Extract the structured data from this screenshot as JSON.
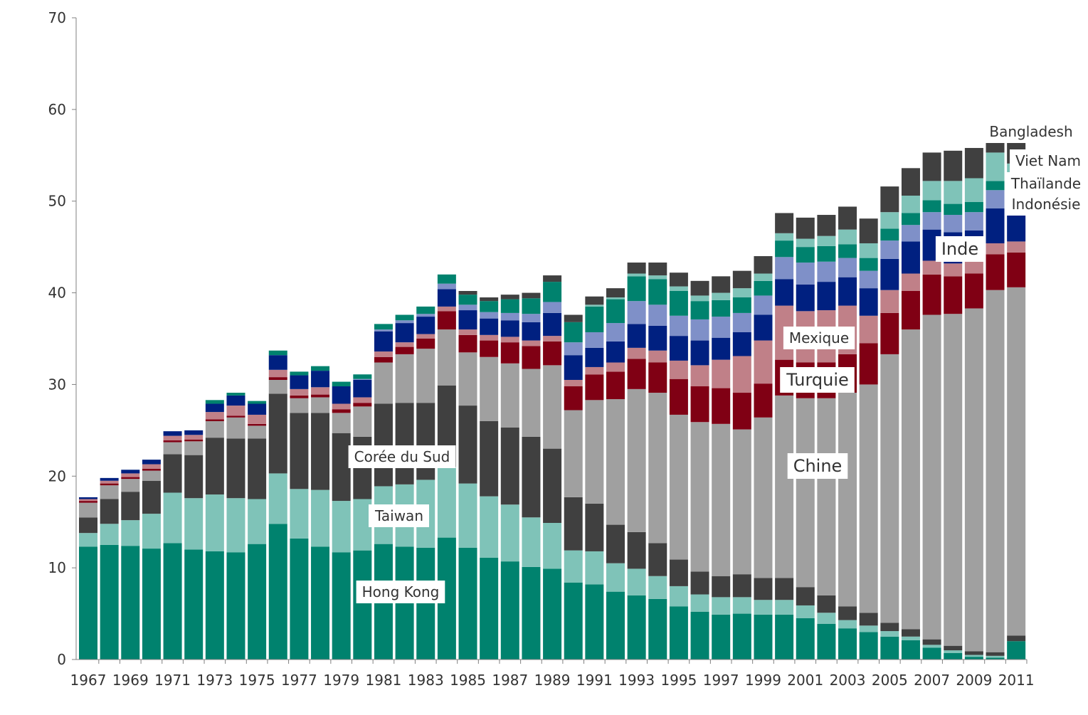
{
  "chart_data": {
    "type": "bar",
    "stacked": true,
    "title": "",
    "xlabel": "",
    "ylabel": "",
    "ylim": [
      0,
      70
    ],
    "yticks": [
      0,
      10,
      20,
      30,
      40,
      50,
      60,
      70
    ],
    "grid": false,
    "legend": "none",
    "categories": [
      "1967",
      "1968",
      "1969",
      "1970",
      "1971",
      "1972",
      "1973",
      "1974",
      "1975",
      "1976",
      "1977",
      "1978",
      "1979",
      "1980",
      "1981",
      "1982",
      "1983",
      "1984",
      "1985",
      "1986",
      "1987",
      "1988",
      "1989",
      "1990",
      "1991",
      "1992",
      "1993",
      "1994",
      "1995",
      "1996",
      "1997",
      "1998",
      "1999",
      "2000",
      "2001",
      "2002",
      "2003",
      "2004",
      "2005",
      "2006",
      "2007",
      "2008",
      "2009",
      "2010",
      "2011"
    ],
    "xtick_labels": [
      "1967",
      "1969",
      "1971",
      "1973",
      "1975",
      "1977",
      "1979",
      "1981",
      "1983",
      "1985",
      "1987",
      "1989",
      "1991",
      "1993",
      "1995",
      "1997",
      "1999",
      "2001",
      "2003",
      "2005",
      "2007",
      "2009",
      "2011"
    ],
    "series": [
      {
        "name": "Hong Kong",
        "color": "#00826E",
        "values": [
          12.3,
          12.5,
          12.4,
          12.1,
          12.7,
          12.0,
          11.8,
          11.7,
          12.6,
          14.8,
          13.2,
          12.3,
          11.7,
          11.9,
          12.6,
          12.3,
          12.2,
          13.3,
          12.2,
          11.1,
          10.7,
          10.1,
          9.9,
          8.4,
          8.2,
          7.4,
          7.0,
          6.6,
          5.8,
          5.2,
          4.9,
          5.0,
          4.9,
          4.9,
          4.5,
          3.9,
          3.4,
          3.0,
          2.5,
          2.1,
          1.3,
          0.7,
          0.3,
          0.2,
          2.0
        ]
      },
      {
        "name": "Taiwan",
        "color": "#7FC3B8",
        "values": [
          1.5,
          2.3,
          2.8,
          3.8,
          5.5,
          5.6,
          6.2,
          5.9,
          4.9,
          5.5,
          5.4,
          6.2,
          5.6,
          5.6,
          6.3,
          6.8,
          7.4,
          7.7,
          7.0,
          6.7,
          6.2,
          5.4,
          5.0,
          3.5,
          3.6,
          3.1,
          2.9,
          2.5,
          2.2,
          1.9,
          1.9,
          1.8,
          1.6,
          1.6,
          1.4,
          1.2,
          0.9,
          0.7,
          0.6,
          0.4,
          0.3,
          0.3,
          0.2,
          0.2,
          0.0
        ]
      },
      {
        "name": "Corée du Sud",
        "color": "#404040",
        "values": [
          1.7,
          2.7,
          3.1,
          3.6,
          4.2,
          4.7,
          6.2,
          6.5,
          6.6,
          8.7,
          8.3,
          8.4,
          7.4,
          6.8,
          9.0,
          8.9,
          8.4,
          8.9,
          8.5,
          8.2,
          8.4,
          8.8,
          8.1,
          5.8,
          5.2,
          4.2,
          4.0,
          3.6,
          2.9,
          2.5,
          2.3,
          2.5,
          2.4,
          2.4,
          2.0,
          1.9,
          1.5,
          1.4,
          0.9,
          0.8,
          0.6,
          0.5,
          0.4,
          0.4,
          0.6
        ]
      },
      {
        "name": "Chine",
        "color": "#A0A0A0",
        "values": [
          1.6,
          1.5,
          1.4,
          1.1,
          1.3,
          1.5,
          1.8,
          2.3,
          1.4,
          1.5,
          1.6,
          1.7,
          2.2,
          3.3,
          4.5,
          5.3,
          5.9,
          6.1,
          5.8,
          7.0,
          7.0,
          7.4,
          9.1,
          9.5,
          11.3,
          13.7,
          15.6,
          16.4,
          15.8,
          16.3,
          16.6,
          15.8,
          17.5,
          19.9,
          20.6,
          21.5,
          23.3,
          24.9,
          29.3,
          32.7,
          35.4,
          36.2,
          37.4,
          39.5,
          38.0
        ]
      },
      {
        "name": "Turquie",
        "color": "#800014",
        "values": [
          0.2,
          0.2,
          0.2,
          0.2,
          0.2,
          0.2,
          0.2,
          0.2,
          0.2,
          0.3,
          0.3,
          0.3,
          0.4,
          0.4,
          0.6,
          0.8,
          1.1,
          2.0,
          1.9,
          1.8,
          2.3,
          2.5,
          2.6,
          2.6,
          2.8,
          3.0,
          3.3,
          3.3,
          3.9,
          3.9,
          3.9,
          4.0,
          3.7,
          3.9,
          3.9,
          3.9,
          4.2,
          4.5,
          4.5,
          4.2,
          4.4,
          4.1,
          3.8,
          3.9,
          3.8
        ]
      },
      {
        "name": "Mexique",
        "color": "#C08088",
        "values": [
          0.2,
          0.3,
          0.4,
          0.5,
          0.5,
          0.5,
          0.8,
          1.1,
          1.0,
          0.8,
          0.7,
          0.8,
          0.6,
          0.6,
          0.6,
          0.5,
          0.5,
          0.5,
          0.6,
          0.6,
          0.6,
          0.6,
          0.6,
          0.7,
          0.8,
          1.0,
          1.2,
          1.3,
          2.0,
          2.3,
          3.1,
          4.0,
          4.7,
          5.9,
          5.6,
          5.7,
          5.3,
          3.0,
          2.5,
          1.9,
          1.5,
          1.4,
          1.3,
          1.2,
          1.2
        ]
      },
      {
        "name": "Inde",
        "color": "#002080",
        "values": [
          0.2,
          0.3,
          0.4,
          0.5,
          0.5,
          0.5,
          0.9,
          1.1,
          1.2,
          1.6,
          1.5,
          1.8,
          1.9,
          1.9,
          2.2,
          2.1,
          1.9,
          1.9,
          2.1,
          1.8,
          1.8,
          2.0,
          2.5,
          2.7,
          2.1,
          2.3,
          2.6,
          2.7,
          2.7,
          2.7,
          2.4,
          2.6,
          2.8,
          2.9,
          2.9,
          3.1,
          3.1,
          3.0,
          3.4,
          3.5,
          3.4,
          3.4,
          3.4,
          3.8,
          2.9
        ]
      },
      {
        "name": "Indonésie",
        "color": "#7F90C8",
        "values": [
          0.0,
          0.0,
          0.0,
          0.0,
          0.0,
          0.0,
          0.0,
          0.0,
          0.0,
          0.0,
          0.0,
          0.0,
          0.0,
          0.1,
          0.2,
          0.3,
          0.3,
          0.6,
          0.6,
          0.7,
          0.8,
          0.9,
          1.2,
          1.4,
          1.7,
          2.0,
          2.5,
          2.3,
          2.2,
          2.3,
          2.3,
          2.1,
          2.1,
          2.4,
          2.4,
          2.2,
          2.1,
          1.9,
          2.0,
          1.8,
          1.9,
          1.9,
          2.0,
          2.0,
          1.5
        ]
      },
      {
        "name": "Thaïlande",
        "color": "#00826E",
        "values": [
          0.0,
          0.0,
          0.0,
          0.0,
          0.0,
          0.0,
          0.4,
          0.3,
          0.3,
          0.5,
          0.4,
          0.5,
          0.5,
          0.5,
          0.6,
          0.6,
          0.8,
          1.0,
          1.1,
          1.2,
          1.5,
          1.7,
          2.2,
          2.2,
          2.8,
          2.6,
          2.7,
          2.8,
          2.7,
          2.0,
          1.8,
          1.7,
          1.6,
          1.8,
          1.7,
          1.7,
          1.5,
          1.4,
          1.3,
          1.3,
          1.3,
          1.2,
          1.1,
          1.0,
          1.0
        ]
      },
      {
        "name": "Viet Nam",
        "color": "#7FC3B8",
        "values": [
          0.0,
          0.0,
          0.0,
          0.0,
          0.0,
          0.0,
          0.0,
          0.0,
          0.0,
          0.0,
          0.0,
          0.0,
          0.0,
          0.0,
          0.0,
          0.0,
          0.0,
          0.0,
          0.0,
          0.0,
          0.0,
          0.0,
          0.0,
          0.0,
          0.2,
          0.2,
          0.3,
          0.4,
          0.5,
          0.6,
          0.8,
          1.0,
          0.8,
          0.8,
          0.9,
          1.1,
          1.6,
          1.6,
          1.8,
          1.9,
          2.1,
          2.5,
          2.6,
          3.1,
          3.1
        ]
      },
      {
        "name": "Bangladesh",
        "color": "#404040",
        "values": [
          0.0,
          0.0,
          0.0,
          0.0,
          0.0,
          0.0,
          0.0,
          0.0,
          0.0,
          0.0,
          0.0,
          0.0,
          0.0,
          0.0,
          0.0,
          0.0,
          0.0,
          0.0,
          0.4,
          0.4,
          0.5,
          0.6,
          0.7,
          0.8,
          0.9,
          1.0,
          1.2,
          1.4,
          1.5,
          1.6,
          1.8,
          1.9,
          1.9,
          2.2,
          2.3,
          2.3,
          2.5,
          2.7,
          2.8,
          3.0,
          3.1,
          3.3,
          3.3,
          3.5,
          4.3
        ]
      }
    ],
    "annotations": [
      {
        "text": "Hong Kong",
        "series": "Hong Kong"
      },
      {
        "text": "Taiwan",
        "series": "Taiwan"
      },
      {
        "text": "Corée du Sud",
        "series": "Corée du Sud"
      },
      {
        "text": "Chine",
        "series": "Chine"
      },
      {
        "text": "Turquie",
        "series": "Turquie"
      },
      {
        "text": "Mexique",
        "series": "Mexique"
      },
      {
        "text": "Inde",
        "series": "Inde"
      },
      {
        "text": "Indonésie",
        "series": "Indonésie"
      },
      {
        "text": "Thaïlande",
        "series": "Thaïlande"
      },
      {
        "text": "Viet Nam",
        "series": "Viet Nam"
      },
      {
        "text": "Bangladesh",
        "series": "Bangladesh"
      }
    ]
  }
}
